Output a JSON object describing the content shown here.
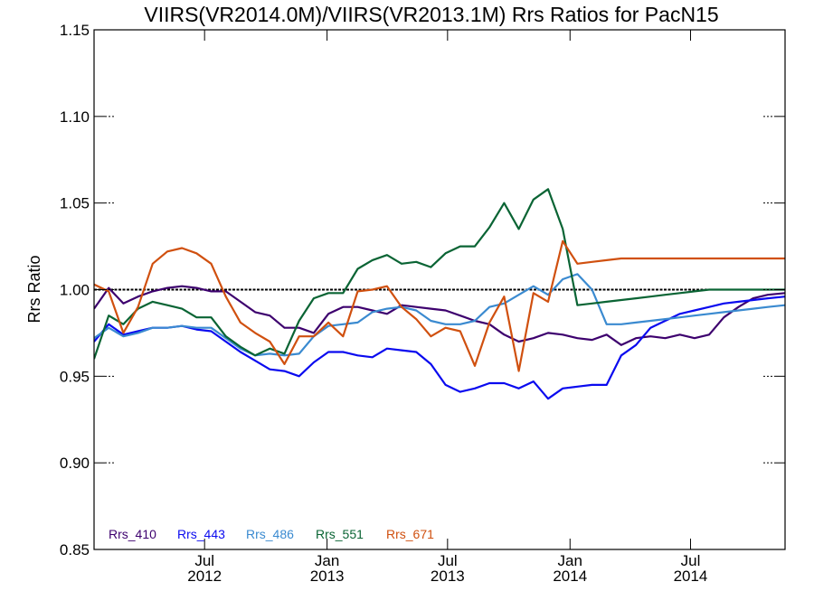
{
  "chart_data": {
    "type": "line",
    "title": "VIIRS(VR2014.0M)/VIIRS(VR2013.1M)  Rrs Ratios for PacN15",
    "ylabel": "Rrs Ratio",
    "xlabel": "",
    "xlim": [
      "2012-01-17",
      "2014-11-20"
    ],
    "ylim": [
      0.85,
      1.15
    ],
    "yticks": [
      "0.85",
      "0.90",
      "0.95",
      "1.00",
      "1.05",
      "1.10",
      "1.15"
    ],
    "xticks": [
      {
        "date": "2012-07-01",
        "month": "Jul",
        "year": "2012"
      },
      {
        "date": "2013-01-01",
        "month": "Jan",
        "year": "2013"
      },
      {
        "date": "2013-07-01",
        "month": "Jul",
        "year": "2013"
      },
      {
        "date": "2014-01-01",
        "month": "Jan",
        "year": "2014"
      },
      {
        "date": "2014-07-01",
        "month": "Jul",
        "year": "2014"
      }
    ],
    "reference_line": 1.0,
    "legend_position": "bottom-left",
    "x": [
      "2012-01-17",
      "2012-02-08",
      "2012-03-01",
      "2012-03-23",
      "2012-04-14",
      "2012-05-06",
      "2012-05-28",
      "2012-06-19",
      "2012-07-11",
      "2012-08-02",
      "2012-08-24",
      "2012-09-15",
      "2012-10-07",
      "2012-10-29",
      "2012-11-20",
      "2012-12-12",
      "2013-01-03",
      "2013-01-25",
      "2013-02-16",
      "2013-03-10",
      "2013-04-01",
      "2013-04-23",
      "2013-05-15",
      "2013-06-06",
      "2013-06-28",
      "2013-07-20",
      "2013-08-11",
      "2013-09-02",
      "2013-09-24",
      "2013-10-16",
      "2013-11-07",
      "2013-11-29",
      "2013-12-21",
      "2014-01-12",
      "2014-02-03",
      "2014-02-25",
      "2014-03-19",
      "2014-04-10",
      "2014-05-02",
      "2014-05-24",
      "2014-06-15",
      "2014-07-07",
      "2014-07-29",
      "2014-08-20",
      "2014-09-11",
      "2014-10-03",
      "2014-10-25",
      "2014-11-20"
    ],
    "series": [
      {
        "name": "Rrs_410",
        "color": "#3d006e",
        "values": [
          0.989,
          1.001,
          0.992,
          0.996,
          0.999,
          1.001,
          1.002,
          1.001,
          0.999,
          0.999,
          0.993,
          0.987,
          0.985,
          0.978,
          0.978,
          0.975,
          0.986,
          0.99,
          0.99,
          0.988,
          0.986,
          0.991,
          0.99,
          0.989,
          0.988,
          0.985,
          0.982,
          0.98,
          0.974,
          0.97,
          0.972,
          0.975,
          0.974,
          0.972,
          0.971,
          0.974,
          0.968,
          0.972,
          0.973,
          0.972,
          0.974,
          0.972,
          0.974,
          0.984,
          0.99,
          0.995,
          0.997,
          0.998
        ]
      },
      {
        "name": "Rrs_443",
        "color": "#0a0aef",
        "values": [
          0.97,
          0.98,
          0.974,
          0.976,
          0.978,
          0.978,
          0.979,
          0.977,
          0.976,
          0.97,
          0.964,
          0.959,
          0.954,
          0.953,
          0.95,
          0.958,
          0.964,
          0.964,
          0.962,
          0.961,
          0.966,
          0.965,
          0.964,
          0.957,
          0.945,
          0.941,
          0.943,
          0.946,
          0.946,
          0.943,
          0.947,
          0.937,
          0.943,
          0.944,
          0.945,
          0.945,
          0.962,
          0.968,
          0.978,
          0.982,
          0.986,
          0.988,
          0.99,
          0.992,
          0.993,
          0.994,
          0.995,
          0.996
        ]
      },
      {
        "name": "Rrs_486",
        "color": "#3a8ad0",
        "values": [
          0.972,
          0.978,
          0.973,
          0.975,
          0.978,
          0.978,
          0.979,
          0.978,
          0.978,
          0.972,
          0.966,
          0.962,
          0.963,
          0.962,
          0.963,
          0.973,
          0.979,
          0.98,
          0.981,
          0.987,
          0.989,
          0.99,
          0.988,
          0.982,
          0.98,
          0.98,
          0.982,
          0.99,
          0.992,
          0.997,
          1.002,
          0.997,
          1.006,
          1.009,
          1.0,
          0.98,
          0.98,
          0.981,
          0.982,
          0.983,
          0.984,
          0.985,
          0.986,
          0.987,
          0.988,
          0.989,
          0.99,
          0.991
        ]
      },
      {
        "name": "Rrs_551",
        "color": "#0a6434",
        "values": [
          0.96,
          0.985,
          0.98,
          0.989,
          0.993,
          0.991,
          0.989,
          0.984,
          0.984,
          0.973,
          0.967,
          0.962,
          0.966,
          0.963,
          0.982,
          0.995,
          0.998,
          0.998,
          1.012,
          1.017,
          1.02,
          1.015,
          1.016,
          1.013,
          1.021,
          1.025,
          1.025,
          1.036,
          1.05,
          1.035,
          1.052,
          1.058,
          1.035,
          0.991,
          0.992,
          0.993,
          0.994,
          0.995,
          0.996,
          0.997,
          0.998,
          0.999,
          1.0,
          1.0,
          1.0,
          1.0,
          1.0,
          1.0
        ]
      },
      {
        "name": "Rrs_671",
        "color": "#d0500f",
        "values": [
          1.003,
          0.999,
          0.975,
          0.99,
          1.015,
          1.022,
          1.024,
          1.021,
          1.015,
          0.996,
          0.981,
          0.975,
          0.97,
          0.957,
          0.973,
          0.973,
          0.981,
          0.973,
          0.999,
          1.0,
          1.002,
          0.99,
          0.983,
          0.973,
          0.978,
          0.976,
          0.956,
          0.981,
          0.996,
          0.953,
          0.998,
          0.993,
          1.028,
          1.015,
          1.016,
          1.017,
          1.018,
          1.018,
          1.018,
          1.018,
          1.018,
          1.018,
          1.018,
          1.018,
          1.018,
          1.018,
          1.018,
          1.018
        ]
      }
    ]
  }
}
